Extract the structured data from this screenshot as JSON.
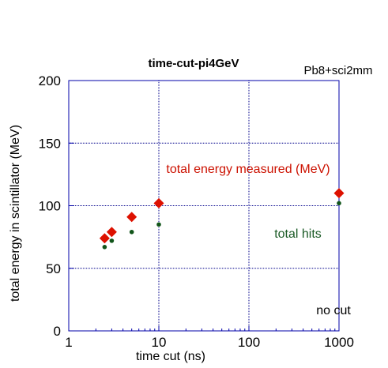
{
  "chart_data": {
    "type": "scatter",
    "title": "time-cut-pi4GeV",
    "subtitle": "Pb8+sci2mm",
    "xlabel": "time cut (ns)",
    "ylabel": "total energy in scintillator (MeV)",
    "xscale": "log",
    "xlim": [
      1,
      1000
    ],
    "ylim": [
      0,
      200
    ],
    "xticks": [
      1,
      10,
      100,
      1000
    ],
    "xtick_labels": [
      "1",
      "10",
      "100",
      "1000"
    ],
    "yticks": [
      0,
      50,
      100,
      150,
      200
    ],
    "ytick_labels": [
      "0",
      "50",
      "100",
      "150",
      "200"
    ],
    "grid": true,
    "frame_color": "#0000aa",
    "grid_color": "#00008b",
    "series": [
      {
        "name": "total energy measured (MeV)",
        "marker": "diamond",
        "color": "#dd1100",
        "x": [
          2.5,
          3,
          5,
          10,
          1000
        ],
        "y": [
          74,
          79,
          91,
          102,
          110
        ]
      },
      {
        "name": "total hits",
        "marker": "circle",
        "color": "#11551a",
        "x": [
          2.5,
          3,
          5,
          10,
          1000
        ],
        "y": [
          67,
          72,
          79,
          85,
          102
        ]
      }
    ],
    "annotations": [
      "no cut"
    ]
  }
}
